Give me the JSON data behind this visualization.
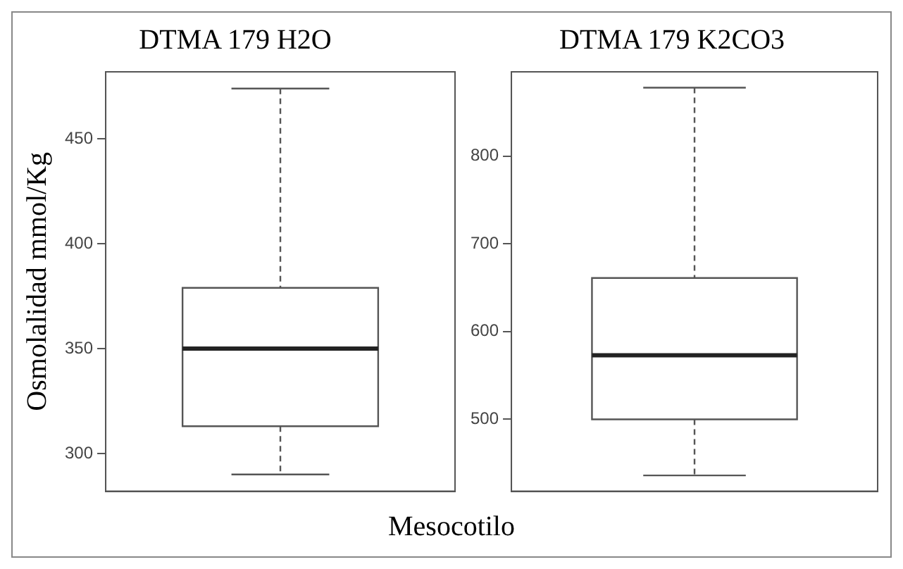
{
  "chart_data": [
    {
      "type": "box",
      "title": "DTMA 179 H2O",
      "ylabel": "Osmolalidad mmol/Kg",
      "categories": [
        null
      ],
      "boxes": [
        {
          "low": 290,
          "q1": 313,
          "median": 350,
          "q3": 379,
          "high": 474
        }
      ],
      "color": "#555555",
      "ylim": [
        282,
        482
      ],
      "yticks": [
        300,
        350,
        400,
        450
      ],
      "grid": false
    },
    {
      "type": "box",
      "title": "DTMA 179 K2CO3",
      "xlabel": "Mesocotilo",
      "categories": [
        null
      ],
      "boxes": [
        {
          "low": 436,
          "q1": 500,
          "median": 573,
          "q3": 661,
          "high": 878
        }
      ],
      "color": "#555555",
      "ylim": [
        418,
        896
      ],
      "yticks": [
        500,
        600,
        700,
        800
      ],
      "grid": false
    }
  ]
}
